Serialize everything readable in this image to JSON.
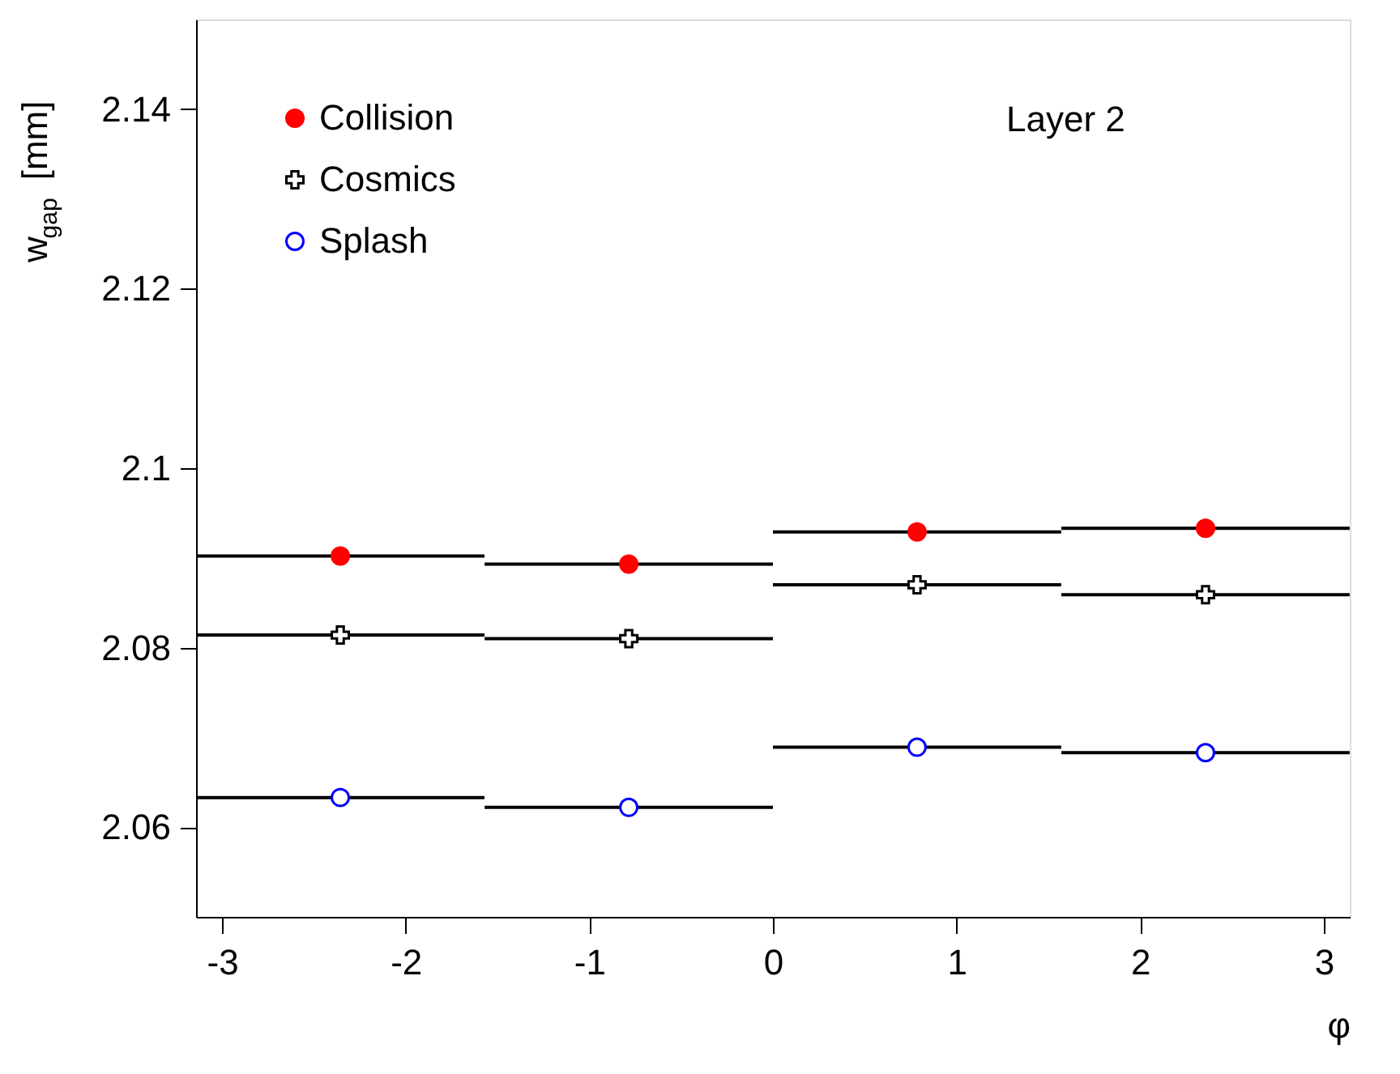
{
  "chart_data": {
    "type": "scatter",
    "xlabel": "φ",
    "ylabel": "w$_{gap}$ [mm]",
    "x": [
      -2.356,
      -0.785,
      0.785,
      2.356
    ],
    "series": [
      {
        "name": "Collision",
        "color": "#ff0000",
        "marker": "circle",
        "values": [
          2.0902,
          2.0893,
          2.0929,
          2.0933
        ],
        "xerrors": [
          0.785,
          0.785,
          0.785,
          0.785
        ]
      },
      {
        "name": "Cosmics",
        "color": "#000000",
        "marker": "cross",
        "values": [
          2.0814,
          2.081,
          2.087,
          2.0859
        ],
        "xerrors": [
          0.785,
          0.785,
          0.785,
          0.785
        ]
      },
      {
        "name": "Splash",
        "color": "#0000ff",
        "marker": "circle",
        "values": [
          2.0633,
          2.0622,
          2.0689,
          2.0683
        ],
        "xerrors": [
          0.785,
          0.785,
          0.785,
          0.785
        ]
      }
    ],
    "annotations": [
      "Layer 2"
    ],
    "xlim": [
      -3.1416,
      3.1416
    ],
    "xticks": [
      -3,
      -2,
      -1,
      0,
      1,
      2,
      3
    ],
    "ylim": [
      2.05,
      2.15
    ],
    "yticks": [
      2.06,
      2.08,
      2.1,
      2.12,
      2.14
    ],
    "legend": "top left",
    "grid": false
  }
}
